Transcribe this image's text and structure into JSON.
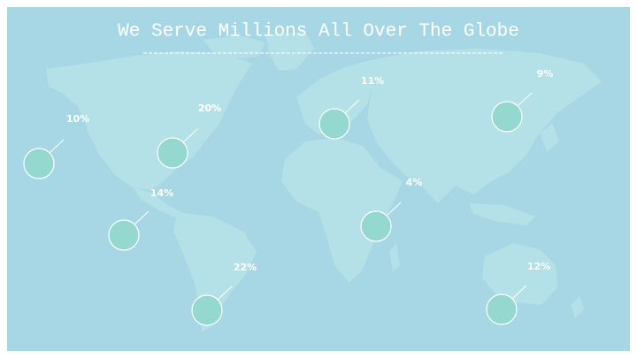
{
  "title": "We Serve Millions All Over The Globe",
  "markers": [
    {
      "label": "10%"
    },
    {
      "label": "20%"
    },
    {
      "label": "11%"
    },
    {
      "label": "9%"
    },
    {
      "label": "14%"
    },
    {
      "label": "4%"
    },
    {
      "label": "22%"
    },
    {
      "label": "12%"
    }
  ]
}
